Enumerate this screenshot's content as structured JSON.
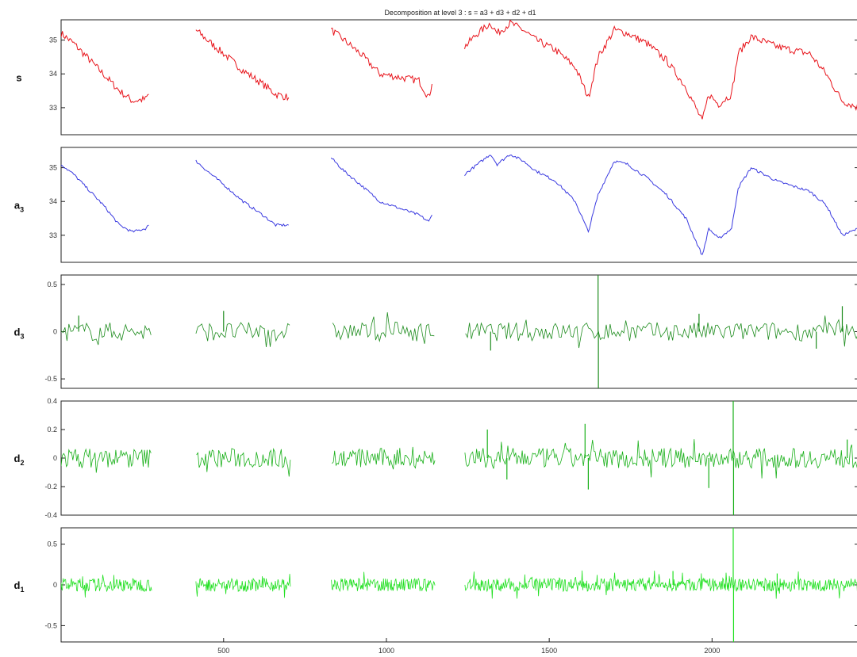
{
  "figure_title": "Decomposition at level 3 : s = a3 + d3 + d2 + d1",
  "chart_data": [
    {
      "type": "line",
      "label_main": "s",
      "label_sub": "",
      "color": "#e8141b",
      "xlim": [
        1,
        2450
      ],
      "ylim": [
        32.2,
        35.6
      ],
      "yticks": [
        {
          "v": 33,
          "t": "33"
        },
        {
          "v": 34,
          "t": "34"
        },
        {
          "v": 35,
          "t": "35"
        }
      ],
      "segments": [
        {
          "x": [
            1,
            40,
            80,
            130,
            180,
            220,
            260,
            270
          ],
          "y": [
            35.2,
            34.9,
            34.5,
            34.0,
            33.5,
            33.2,
            33.25,
            33.4
          ]
        },
        {
          "x": [
            415,
            450,
            500,
            560,
            620,
            660,
            700
          ],
          "y": [
            35.3,
            35.0,
            34.6,
            34.1,
            33.7,
            33.4,
            33.3
          ]
        },
        {
          "x": [
            830,
            870,
            920,
            980,
            1040,
            1100,
            1130,
            1140
          ],
          "y": [
            35.3,
            35.0,
            34.6,
            34.0,
            33.9,
            33.8,
            33.3,
            33.7
          ]
        },
        {
          "x": [
            1240,
            1280,
            1320,
            1340,
            1380,
            1420,
            1460,
            1520,
            1580,
            1620,
            1650,
            1700,
            1740,
            1800,
            1860,
            1920,
            1970,
            1990,
            2020,
            2060,
            2080,
            2120,
            2200,
            2300,
            2350,
            2400,
            2450
          ],
          "y": [
            34.8,
            35.2,
            35.5,
            35.2,
            35.5,
            35.3,
            35.0,
            34.7,
            34.2,
            33.3,
            34.5,
            35.3,
            35.2,
            34.9,
            34.4,
            33.6,
            32.6,
            33.4,
            33.1,
            33.4,
            34.6,
            35.1,
            34.8,
            34.6,
            34.0,
            33.2,
            33.0
          ]
        }
      ]
    },
    {
      "type": "line",
      "label_main": "a",
      "label_sub": "3",
      "color": "#3a3ae0",
      "xlim": [
        1,
        2450
      ],
      "ylim": [
        32.2,
        35.6
      ],
      "yticks": [
        {
          "v": 33,
          "t": "33"
        },
        {
          "v": 34,
          "t": "34"
        },
        {
          "v": 35,
          "t": "35"
        }
      ],
      "segments": [
        {
          "x": [
            1,
            40,
            80,
            130,
            180,
            220,
            260,
            270
          ],
          "y": [
            35.1,
            34.8,
            34.4,
            33.9,
            33.3,
            33.1,
            33.2,
            33.3
          ]
        },
        {
          "x": [
            415,
            450,
            500,
            560,
            620,
            660,
            700
          ],
          "y": [
            35.2,
            34.9,
            34.5,
            34.0,
            33.6,
            33.3,
            33.3
          ]
        },
        {
          "x": [
            830,
            870,
            920,
            980,
            1040,
            1100,
            1130,
            1140
          ],
          "y": [
            35.3,
            34.9,
            34.5,
            34.0,
            33.8,
            33.6,
            33.4,
            33.6
          ]
        },
        {
          "x": [
            1240,
            1280,
            1320,
            1340,
            1380,
            1420,
            1460,
            1520,
            1580,
            1620,
            1650,
            1700,
            1740,
            1800,
            1860,
            1920,
            1970,
            1990,
            2020,
            2060,
            2080,
            2120,
            2200,
            2300,
            2350,
            2400,
            2450
          ],
          "y": [
            34.8,
            35.1,
            35.4,
            35.1,
            35.4,
            35.2,
            34.9,
            34.6,
            34.0,
            33.1,
            34.2,
            35.2,
            35.1,
            34.7,
            34.2,
            33.5,
            32.4,
            33.2,
            32.9,
            33.2,
            34.4,
            35.0,
            34.6,
            34.3,
            33.9,
            33.0,
            33.2
          ]
        }
      ]
    },
    {
      "type": "line",
      "label_main": "d",
      "label_sub": "3",
      "color": "#1e8c1e",
      "xlim": [
        1,
        2450
      ],
      "ylim": [
        -0.6,
        0.6
      ],
      "yticks": [
        {
          "v": -0.5,
          "t": "-0.5"
        },
        {
          "v": 0,
          "t": "0"
        },
        {
          "v": 0.5,
          "t": "0.5"
        }
      ],
      "noise": {
        "amp": 0.1,
        "period": 6
      },
      "gaps": [
        [
          280,
          415
        ],
        [
          705,
          830
        ],
        [
          1150,
          1240
        ]
      ],
      "spikes": [
        {
          "x": 55,
          "v": 0.17
        },
        {
          "x": 500,
          "v": 0.22
        },
        {
          "x": 1320,
          "v": -0.2
        },
        {
          "x": 1650,
          "v": 0.62
        },
        {
          "x": 1651,
          "v": -0.62
        },
        {
          "x": 1960,
          "v": 0.19
        },
        {
          "x": 2400,
          "v": 0.27
        },
        {
          "x": 2320,
          "v": -0.18
        }
      ]
    },
    {
      "type": "line",
      "label_main": "d",
      "label_sub": "2",
      "color": "#19b019",
      "xlim": [
        1,
        2450
      ],
      "ylim": [
        -0.4,
        0.4
      ],
      "yticks": [
        {
          "v": -0.4,
          "t": "-0.4"
        },
        {
          "v": -0.2,
          "t": "-0.2"
        },
        {
          "v": 0,
          "t": "0"
        },
        {
          "v": 0.2,
          "t": "0.2"
        },
        {
          "v": 0.4,
          "t": "0.4"
        }
      ],
      "noise": {
        "amp": 0.07,
        "period": 4
      },
      "gaps": [
        [
          280,
          415
        ],
        [
          705,
          830
        ],
        [
          1150,
          1240
        ]
      ],
      "spikes": [
        {
          "x": 1310,
          "v": 0.2
        },
        {
          "x": 1370,
          "v": -0.15
        },
        {
          "x": 1610,
          "v": 0.24
        },
        {
          "x": 1620,
          "v": -0.22
        },
        {
          "x": 1990,
          "v": -0.21
        },
        {
          "x": 2065,
          "v": 0.42
        },
        {
          "x": 2066,
          "v": -0.42
        },
        {
          "x": 2415,
          "v": 0.13
        }
      ]
    },
    {
      "type": "line",
      "label_main": "d",
      "label_sub": "1",
      "color": "#22e022",
      "xlim": [
        1,
        2450
      ],
      "ylim": [
        -0.7,
        0.7
      ],
      "yticks": [
        {
          "v": -0.5,
          "t": "-0.5"
        },
        {
          "v": 0,
          "t": "0"
        },
        {
          "v": 0.5,
          "t": "0.5"
        }
      ],
      "noise": {
        "amp": 0.08,
        "period": 2
      },
      "gaps": [
        [
          280,
          415
        ],
        [
          705,
          830
        ],
        [
          1150,
          1240
        ]
      ],
      "spikes": [
        {
          "x": 2065,
          "v": 0.72
        },
        {
          "x": 2066,
          "v": -0.72
        },
        {
          "x": 1880,
          "v": 0.17
        },
        {
          "x": 2200,
          "v": 0.14
        }
      ],
      "xticks": [
        {
          "v": 500,
          "t": "500"
        },
        {
          "v": 1000,
          "t": "1000"
        },
        {
          "v": 1500,
          "t": "1500"
        },
        {
          "v": 2000,
          "t": "2000"
        }
      ]
    }
  ]
}
